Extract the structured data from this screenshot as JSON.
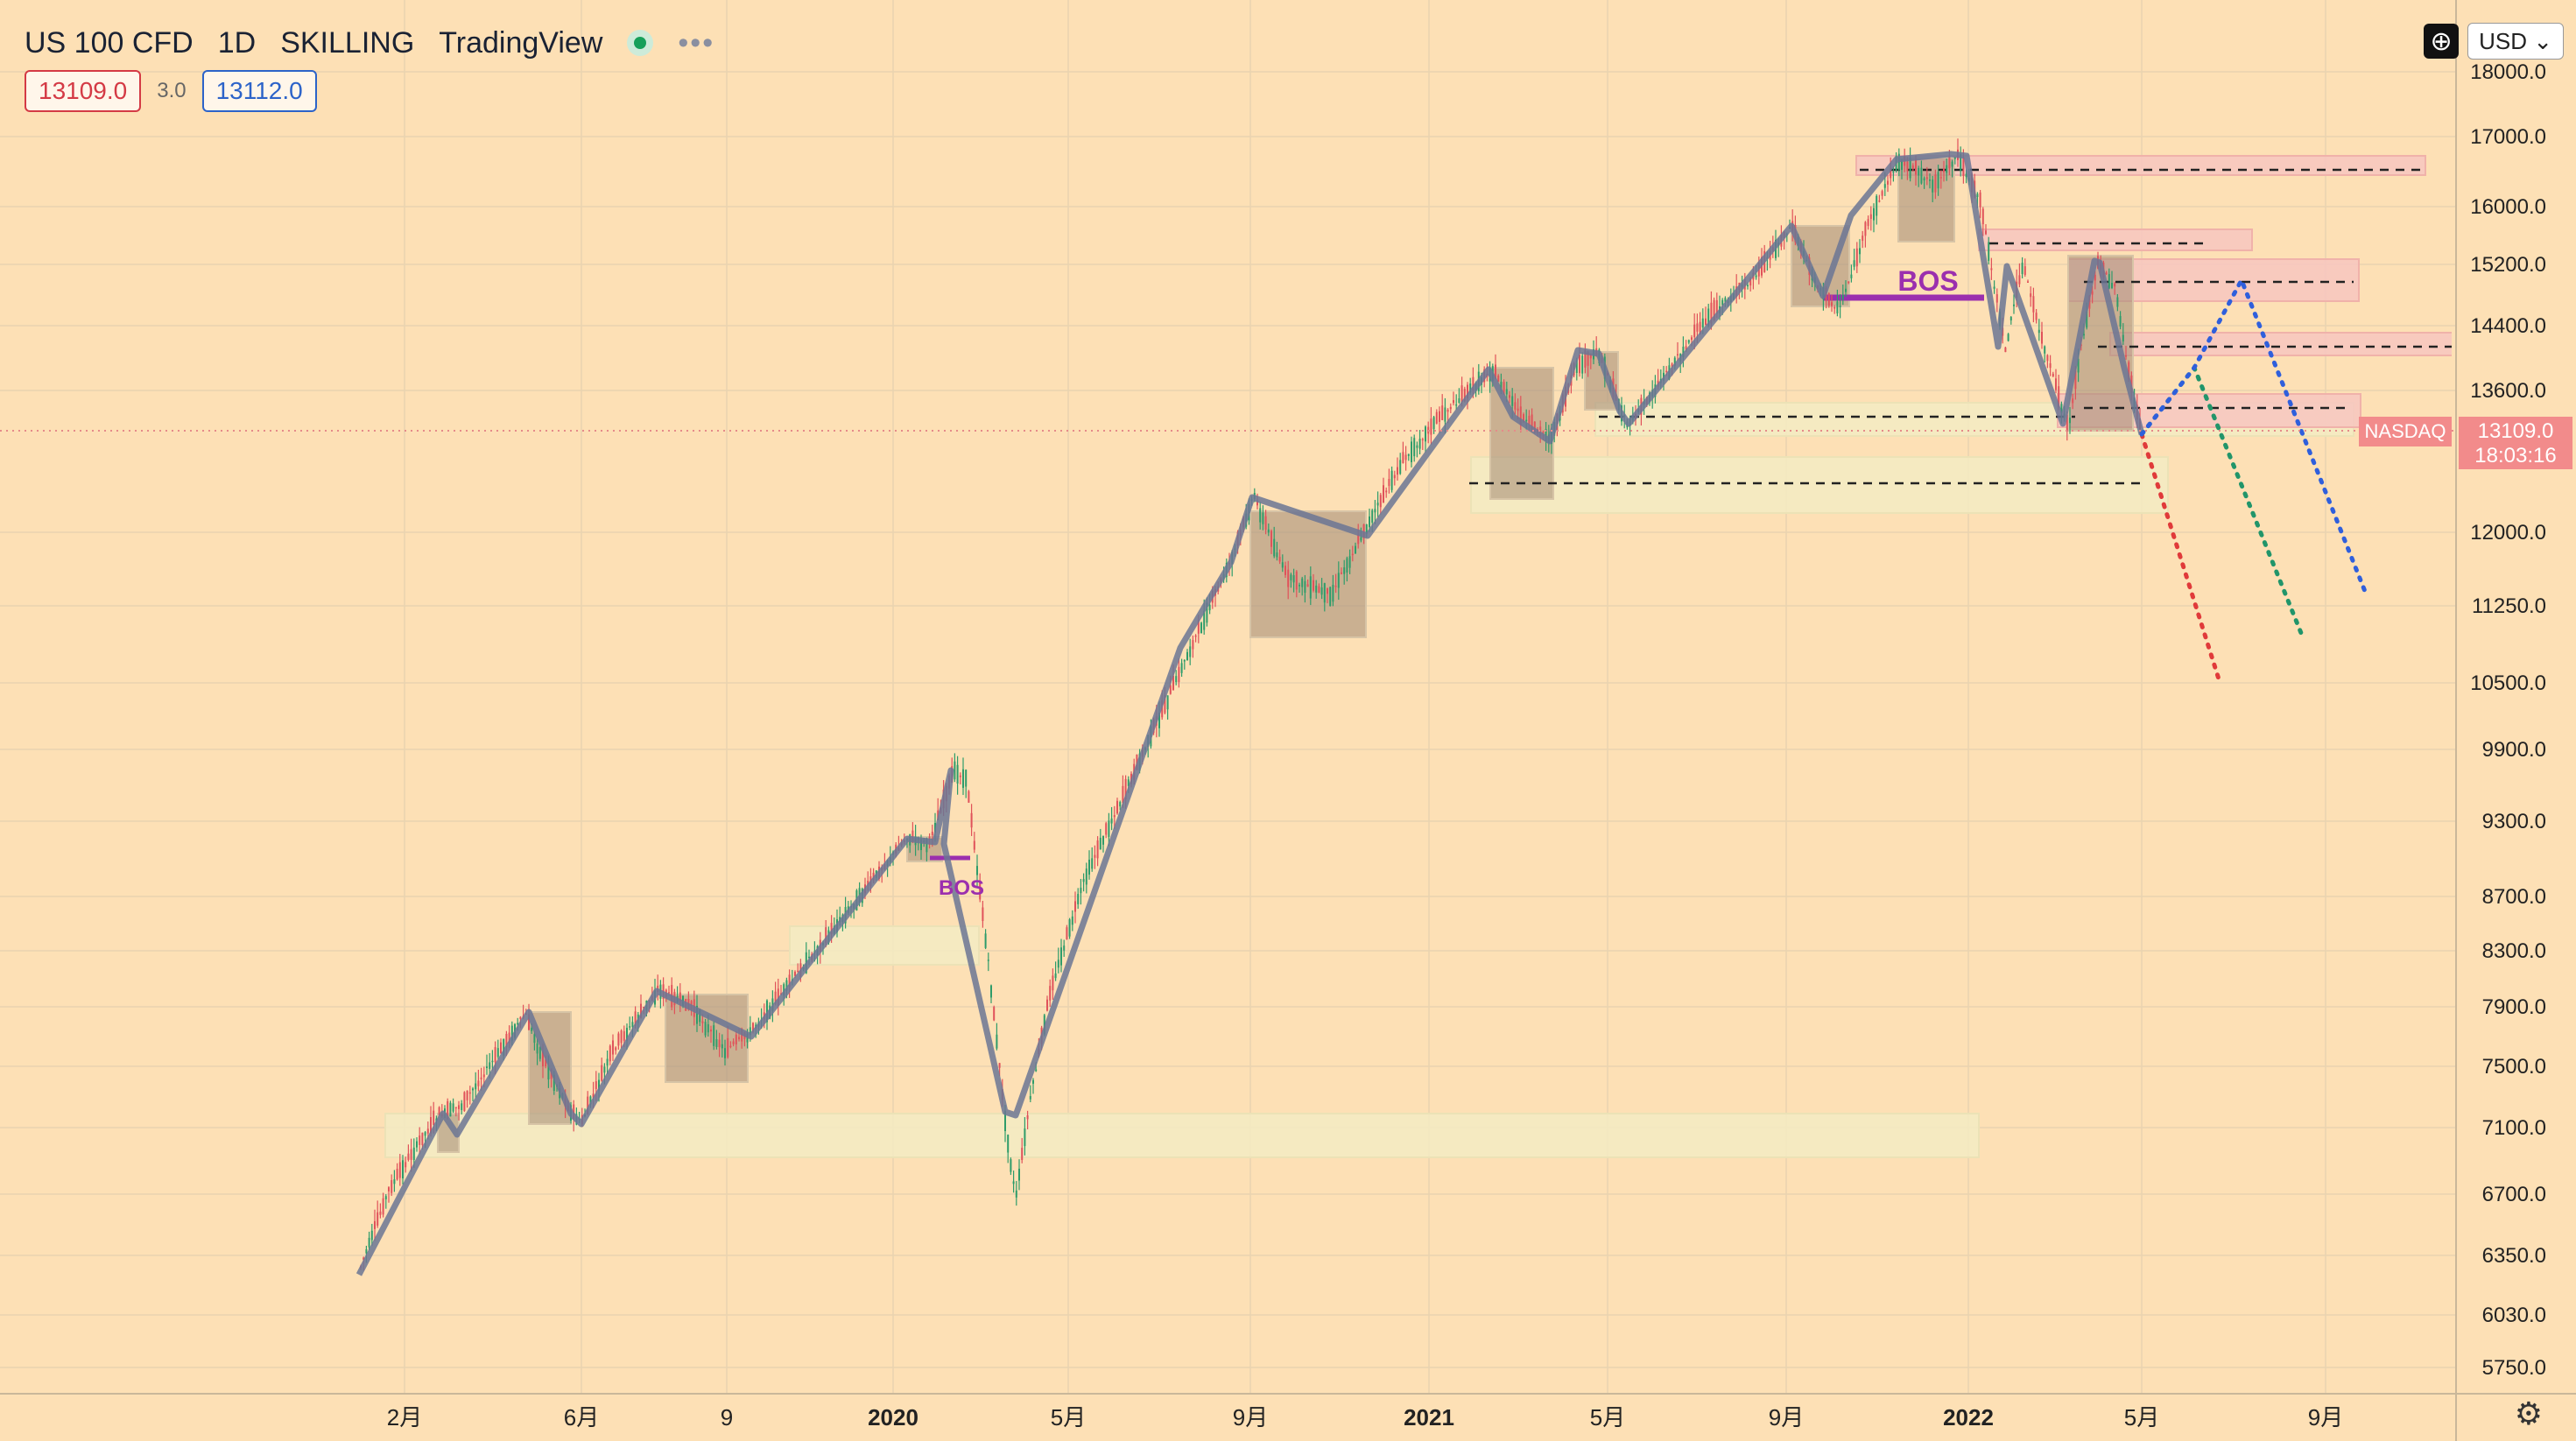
{
  "header": {
    "symbol": "US 100 CFD",
    "interval": "1D",
    "broker": "SKILLING",
    "platform": "TradingView",
    "more_icon": "ellipsis-icon"
  },
  "quotes": {
    "bid": "13109.0",
    "spread": "3.0",
    "ask": "13112.0"
  },
  "toolbar": {
    "add_icon": "plus-circle-icon",
    "currency": "USD",
    "settings_icon": "gear-icon"
  },
  "price_scale": {
    "labels": [
      "18000.0",
      "17000.0",
      "16000.0",
      "15200.0",
      "14400.0",
      "13600.0",
      "12000.0",
      "11250.0",
      "10500.0",
      "9900.0",
      "9300.0",
      "8700.0",
      "8300.0",
      "7900.0",
      "7500.0",
      "7100.0",
      "6700.0",
      "6350.0",
      "6030.0",
      "5750.0"
    ],
    "current_price": "13109.0",
    "countdown": "18:03:16",
    "symbol_tag": "NASDAQ"
  },
  "time_scale": {
    "labels": [
      "2月",
      "6月",
      "9",
      "2020",
      "5月",
      "9月",
      "2021",
      "5月",
      "9月",
      "2022",
      "5月",
      "9月"
    ]
  },
  "annotations": {
    "bos_small": "BOS",
    "bos_large": "BOS"
  },
  "colors": {
    "background": "#fde0b5",
    "structure_line": "#6b7594",
    "bos_line": "#9b2fae",
    "supply_zone": "#f7c6bf",
    "demand_zone": "#f3ebc3",
    "consolidation_box": "#a8907a",
    "projection_red": "#e03a3a",
    "projection_green": "#21956a",
    "projection_blue": "#2f5fdc",
    "price_tag": "#f28b8b"
  }
}
